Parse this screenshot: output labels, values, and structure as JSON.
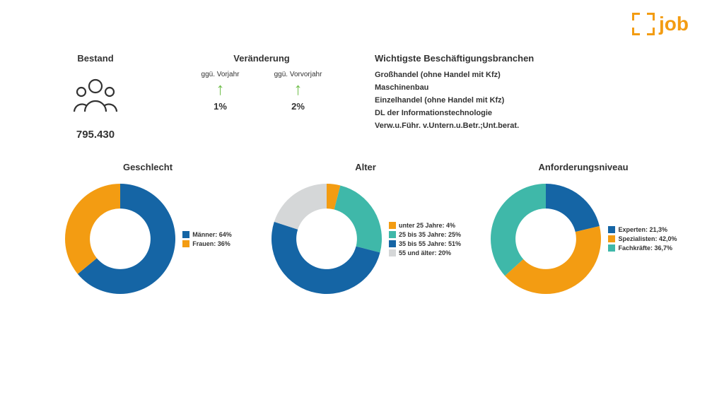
{
  "logo": {
    "text": "job",
    "icon_color": "#F39C12"
  },
  "bestand": {
    "title": "Bestand",
    "value": "795.430",
    "icon_stroke": "#333333"
  },
  "veraenderung": {
    "title": "Veränderung",
    "items": [
      {
        "label": "ggü. Vorjahr",
        "pct": "1%",
        "arrow_color": "#6FBE4A"
      },
      {
        "label": "ggü. Vorvorjahr",
        "pct": "2%",
        "arrow_color": "#6FBE4A"
      }
    ]
  },
  "branchen": {
    "title": "Wichtigste Beschäftigungsbranchen",
    "items": [
      "Großhandel (ohne Handel mit Kfz)",
      "Maschinenbau",
      "Einzelhandel (ohne Handel mit Kfz)",
      "DL der Informationstechnologie",
      "Verw.u.Führ. v.Untern.u.Betr.;Unt.berat."
    ]
  },
  "charts": {
    "geschlecht": {
      "title": "Geschlecht",
      "type": "donut",
      "inner_ratio": 0.55,
      "slices": [
        {
          "label": "Männer: 64%",
          "value": 64,
          "color": "#1565A5"
        },
        {
          "label": "Frauen: 36%",
          "value": 36,
          "color": "#F39C12"
        }
      ],
      "start_angle": -90
    },
    "alter": {
      "title": "Alter",
      "type": "donut",
      "inner_ratio": 0.55,
      "slices": [
        {
          "label": "unter 25 Jahre: 4%",
          "value": 4,
          "color": "#F39C12"
        },
        {
          "label": "25 bis 35 Jahre: 25%",
          "value": 25,
          "color": "#3FB8A9"
        },
        {
          "label": "35 bis 55 Jahre: 51%",
          "value": 51,
          "color": "#1565A5"
        },
        {
          "label": "55 und älter: 20%",
          "value": 20,
          "color": "#D5D7D8"
        }
      ],
      "start_angle": -90
    },
    "anforderung": {
      "title": "Anforderungsniveau",
      "type": "donut",
      "inner_ratio": 0.55,
      "slices": [
        {
          "label": "Experten: 21,3%",
          "value": 21.3,
          "color": "#1565A5"
        },
        {
          "label": "Spezialisten: 42,0%",
          "value": 42.0,
          "color": "#F39C12"
        },
        {
          "label": "Fachkräfte: 36,7%",
          "value": 36.7,
          "color": "#3FB8A9"
        }
      ],
      "start_angle": -90
    }
  },
  "colors": {
    "text": "#333333",
    "background": "#ffffff"
  },
  "donut_size": 160
}
